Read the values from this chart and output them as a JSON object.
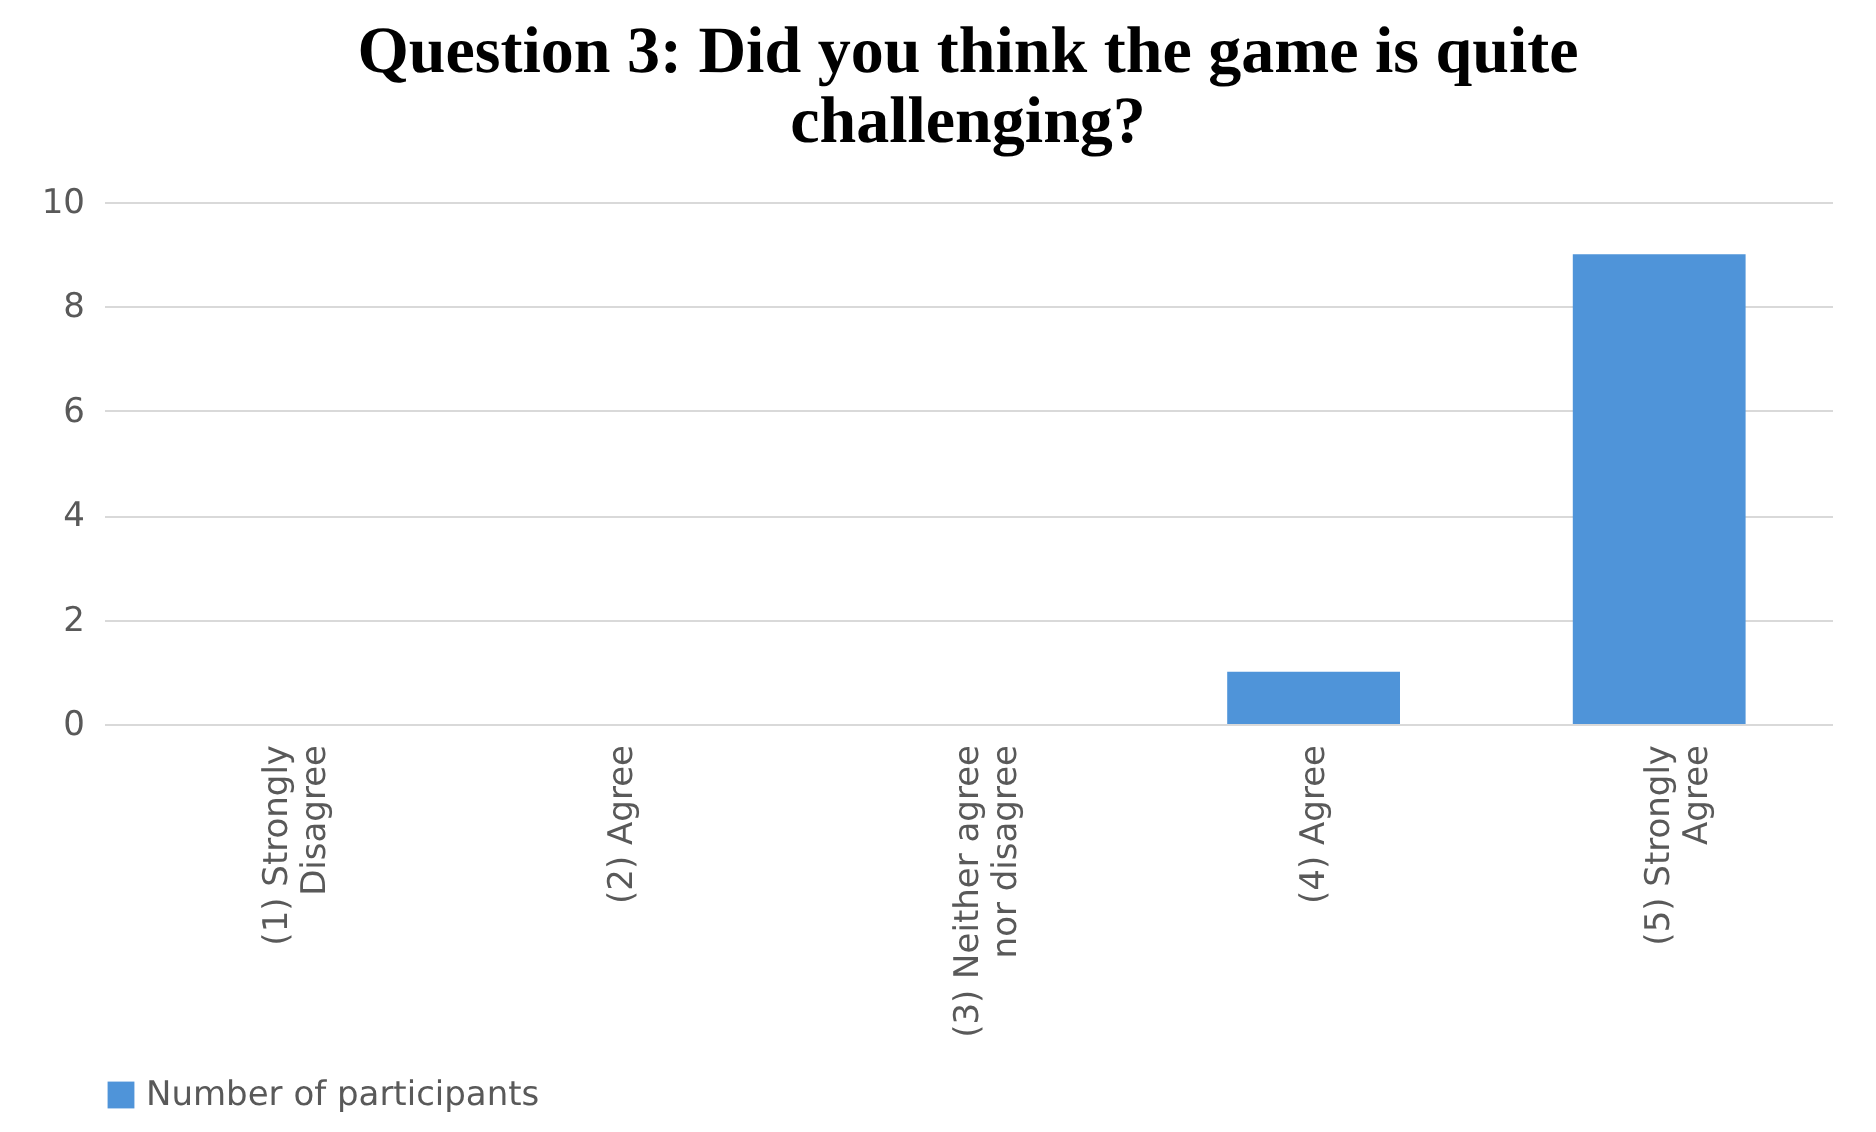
{
  "chart_data": {
    "type": "bar",
    "title": "Question 3: Did you think the game is quite challenging?",
    "categories": [
      "(1) Strongly Disagree",
      "(2) Agree",
      "(3) Neither agree nor disagree",
      "(4) Agree",
      "(5) Strongly Agree"
    ],
    "series": [
      {
        "name": "Number of participants",
        "color": "#4f94d9",
        "values": [
          0,
          0,
          0,
          1,
          9
        ]
      }
    ],
    "ylim": [
      0,
      10
    ],
    "yticks": [
      0,
      2,
      4,
      6,
      8,
      10
    ],
    "grid": "y",
    "legend": "bottom"
  }
}
